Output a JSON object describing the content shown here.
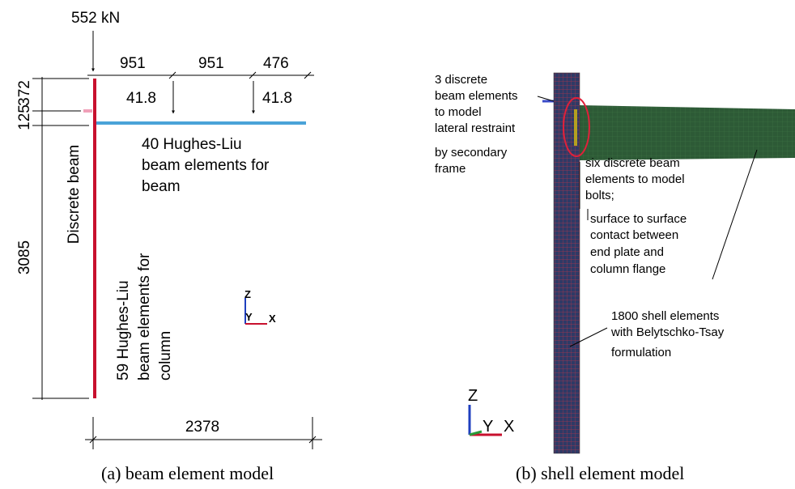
{
  "panel_a": {
    "load": "552 kN",
    "dimensions_top": [
      "951",
      "951",
      "476"
    ],
    "point_loads": [
      "41.8",
      "41.8"
    ],
    "dimensions_left": [
      "372",
      "125",
      "3085"
    ],
    "dimension_bottom": "2378",
    "discrete_beam": "Discrete beam",
    "beam_elements": [
      "40 Hughes-Liu",
      "beam elements for",
      "beam"
    ],
    "column_elements": [
      "59 Hughes-Liu",
      "beam elements for",
      "column"
    ],
    "axes": {
      "z": "Z",
      "y": "Y",
      "x": "X"
    },
    "caption": "(a)  beam element model"
  },
  "panel_b": {
    "restraint_note": [
      "3 discrete",
      "beam elements",
      "to model",
      "lateral restraint",
      "by secondary",
      "frame"
    ],
    "bolt_note": [
      "six discrete beam",
      "elements to model",
      "bolts;"
    ],
    "contact_note": [
      "surface to surface",
      "contact between",
      "end plate and",
      "column flange"
    ],
    "shell_note": [
      "1800 shell elements",
      "with Belytschko-Tsay",
      "formulation"
    ],
    "axes": {
      "z": "Z",
      "y": "Y",
      "x": "X"
    },
    "caption": "(b) shell element model"
  }
}
